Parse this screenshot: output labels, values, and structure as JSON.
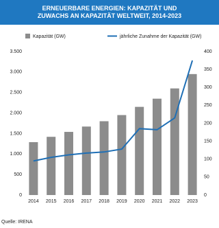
{
  "chart_data": {
    "type": "bar-line",
    "title": "ERNEUERBARE ENERGIEN: KAPAZITÄT UND ZUWACHS AN KAPAZITÄT WELTWEIT, 2014-2023",
    "source": "Quelle: IRENA",
    "categories": [
      "2014",
      "2015",
      "2016",
      "2017",
      "2018",
      "2019",
      "2020",
      "2021",
      "2022",
      "2023"
    ],
    "series": [
      {
        "name": "Kapazität (GW)",
        "color": "#8c8c8c",
        "type": "bar",
        "axis": "y",
        "values": [
          1290,
          1420,
          1540,
          1670,
          1800,
          1950,
          2150,
          2350,
          2600,
          2950
        ]
      },
      {
        "name": "jährliche Zunahme der Kapazität (GW)",
        "color": "#1f6fb5",
        "type": "line",
        "axis": "y2",
        "values": [
          95,
          105,
          112,
          117,
          120,
          128,
          185,
          182,
          215,
          375
        ]
      }
    ],
    "ylim": [
      0,
      3500
    ],
    "yticks": [
      0,
      500,
      {
        "value": 1000,
        "label": "1.000"
      },
      {
        "value": 1500,
        "label": "1.500"
      },
      {
        "value": 2000,
        "label": "2.000"
      },
      {
        "value": 2500,
        "label": "2.500"
      },
      {
        "value": 3000,
        "label": "3.000"
      },
      {
        "value": 3500,
        "label": "3.500"
      }
    ],
    "y2lim": [
      0,
      400
    ],
    "y2ticks": [
      0,
      50,
      100,
      150,
      200,
      250,
      300,
      350,
      400
    ],
    "grid": false
  }
}
